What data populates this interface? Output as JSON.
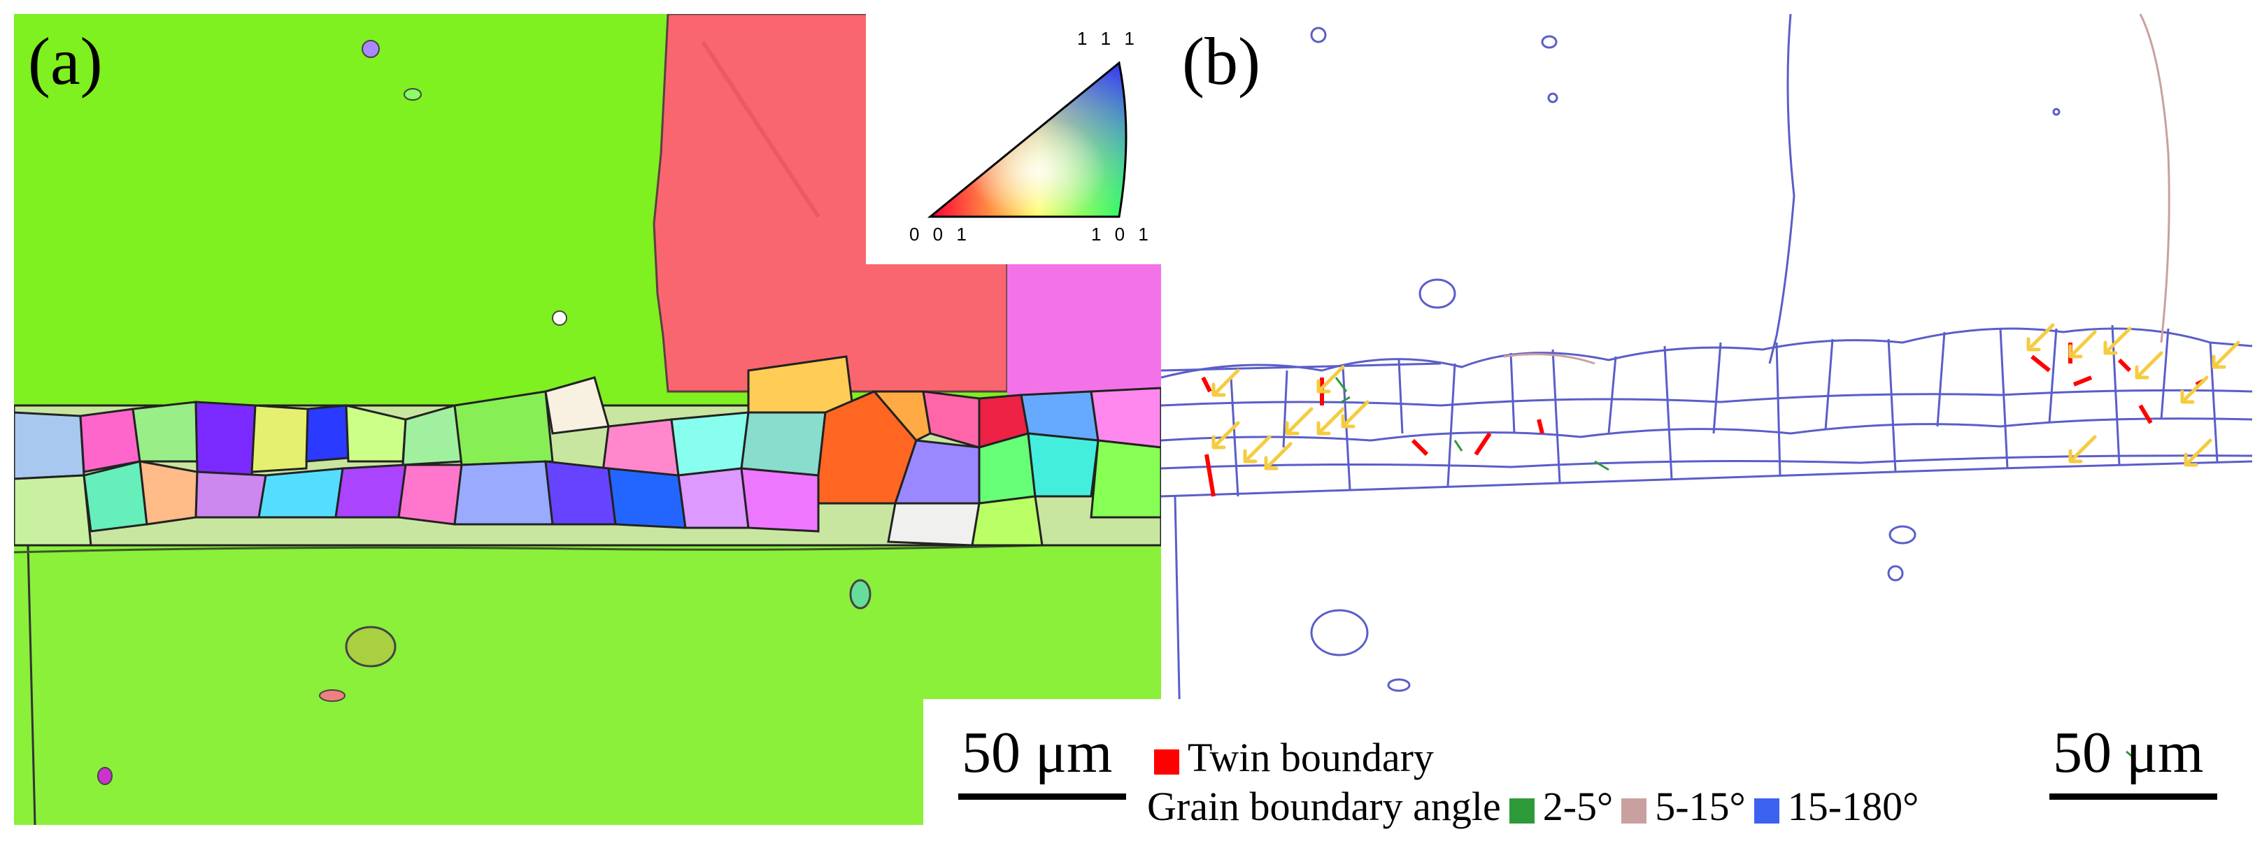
{
  "panel_a": {
    "label": "(a)"
  },
  "panel_b": {
    "label": "(b)"
  },
  "ipf_key": {
    "top_label": "1 1 1",
    "left_label": "0 0 1",
    "right_label": "1 0 1"
  },
  "scale_bars": {
    "left_text": "50 μm",
    "right_text": "50 μm"
  },
  "legend": {
    "twin_label": "Twin  boundary",
    "twin_color": "#ff0000",
    "gb_title": "Grain boundary angle",
    "gb_items": [
      {
        "label": "2-5°",
        "color": "#2e9a3a"
      },
      {
        "label": "5-15°",
        "color": "#c9a0a0"
      },
      {
        "label": "15-180°",
        "color": "#3b63f0"
      }
    ]
  },
  "colors": {
    "green_grain": "#7ff020",
    "red_grain": "#f9666f",
    "pink_grain": "#f472e8",
    "lower_green": "#8af03a",
    "boundary_blue": "#4a4fc0"
  }
}
